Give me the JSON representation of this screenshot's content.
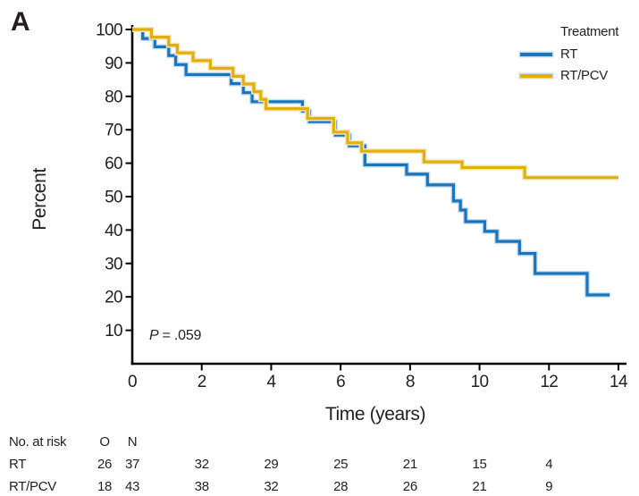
{
  "figure": {
    "panel_label": "A"
  },
  "chart_data": {
    "type": "line",
    "variant": "kaplan_meier_step",
    "title": "",
    "xlabel": "Time (years)",
    "ylabel": "Percent",
    "xlim": [
      0,
      14
    ],
    "ylim": [
      0,
      100
    ],
    "xticks": [
      0,
      2,
      4,
      6,
      8,
      10,
      12,
      14
    ],
    "yticks": [
      10,
      20,
      30,
      40,
      50,
      60,
      70,
      80,
      90,
      100
    ],
    "grid": false,
    "annotation": {
      "p_symbol": "P",
      "p_rest": "= .059"
    },
    "legend": {
      "title": "Treatment",
      "position": "top-right",
      "entries": [
        {
          "label": "RT",
          "color": "#1B75BC"
        },
        {
          "label": "RT/PCV",
          "color": "#E2B00D"
        }
      ]
    },
    "series": [
      {
        "name": "RT",
        "color": "#1B75BC",
        "halo_color": "#C9E0F2",
        "end_time": 13.75,
        "steps": [
          [
            0,
            100
          ],
          [
            0.3,
            97.3
          ],
          [
            0.65,
            94.8
          ],
          [
            1.05,
            92.2
          ],
          [
            1.25,
            89.5
          ],
          [
            1.55,
            86.5
          ],
          [
            2.85,
            83.8
          ],
          [
            3.2,
            81.1
          ],
          [
            3.45,
            78.4
          ],
          [
            4.9,
            75.6
          ],
          [
            5.1,
            72.4
          ],
          [
            5.85,
            68.4
          ],
          [
            6.25,
            65.2
          ],
          [
            6.7,
            59.5
          ],
          [
            7.9,
            56.7
          ],
          [
            8.5,
            53.5
          ],
          [
            9.25,
            48.7
          ],
          [
            9.45,
            46.0
          ],
          [
            9.6,
            42.5
          ],
          [
            10.15,
            39.6
          ],
          [
            10.5,
            36.6
          ],
          [
            11.15,
            33.0
          ],
          [
            11.6,
            27.0
          ],
          [
            13.1,
            20.6
          ]
        ]
      },
      {
        "name": "RT/PCV",
        "color": "#E2B00D",
        "halo_color": "#F5E8C0",
        "end_time": 14,
        "steps": [
          [
            0,
            100
          ],
          [
            0.55,
            97.7
          ],
          [
            1.05,
            95.3
          ],
          [
            1.3,
            93.0
          ],
          [
            1.75,
            90.7
          ],
          [
            2.25,
            88.4
          ],
          [
            2.9,
            86.0
          ],
          [
            3.2,
            83.7
          ],
          [
            3.5,
            81.4
          ],
          [
            3.7,
            79.1
          ],
          [
            3.85,
            76.3
          ],
          [
            5.05,
            73.4
          ],
          [
            5.8,
            69.3
          ],
          [
            6.2,
            66.1
          ],
          [
            6.6,
            63.6
          ],
          [
            8.4,
            60.4
          ],
          [
            9.5,
            58.7
          ],
          [
            11.3,
            55.7
          ]
        ]
      }
    ]
  },
  "at_risk": {
    "title": "No. at risk",
    "col_o_header": "O",
    "col_n_header": "N",
    "times": [
      2,
      4,
      6,
      8,
      10,
      12
    ],
    "rows": [
      {
        "label": "RT",
        "observed": "26",
        "n": "37",
        "counts": [
          "32",
          "29",
          "25",
          "21",
          "15",
          "4"
        ]
      },
      {
        "label": "RT/PCV",
        "observed": "18",
        "n": "43",
        "counts": [
          "38",
          "32",
          "28",
          "26",
          "21",
          "9"
        ]
      }
    ]
  },
  "colors": {
    "axis": "#000000",
    "text": "#231F20",
    "background": "#FFFFFF"
  }
}
